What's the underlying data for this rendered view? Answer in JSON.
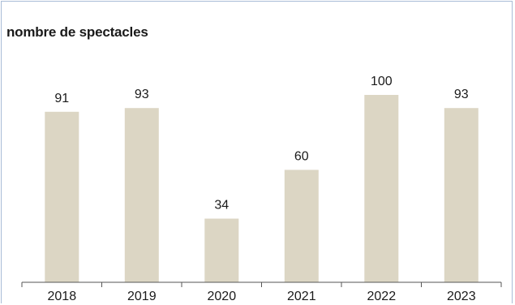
{
  "chart_data": {
    "type": "bar",
    "title": "nombre de spectacles",
    "categories": [
      "2018",
      "2019",
      "2020",
      "2021",
      "2022",
      "2023"
    ],
    "values": [
      91,
      93,
      34,
      60,
      100,
      93
    ],
    "data_labels": [
      "91",
      "93",
      "34",
      "60",
      "100",
      "93"
    ],
    "ylim": [
      0,
      100
    ],
    "grid": false,
    "legend": "none",
    "xlabel": "",
    "ylabel": "",
    "bar_color": "#dcd6c4",
    "axis_color": "#555555",
    "border_color": "#a9bcd6"
  }
}
